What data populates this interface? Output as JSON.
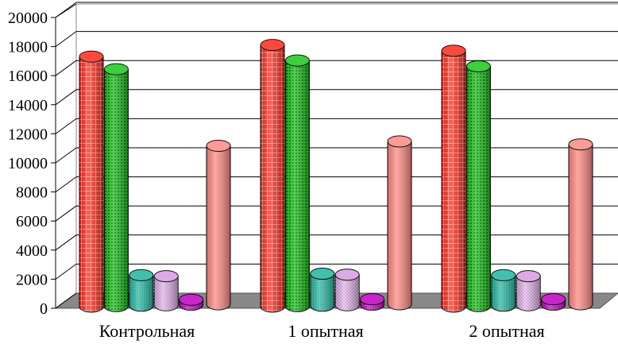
{
  "chart_data": {
    "type": "bar",
    "style": "3d-cylinder",
    "title": "",
    "xlabel": "",
    "ylabel": "",
    "categories": [
      "Контрольная",
      "1 опытная",
      "2 опытная"
    ],
    "ylim": [
      0,
      20000
    ],
    "yticks": [
      0,
      2000,
      4000,
      6000,
      8000,
      10000,
      12000,
      14000,
      16000,
      18000,
      20000
    ],
    "grid": true,
    "legend": "none",
    "series": [
      {
        "color": "#ff2a1a",
        "pattern": "grid",
        "values": [
          17200,
          18000,
          17600
        ]
      },
      {
        "color": "#1ac81a",
        "pattern": "dots",
        "values": [
          16300,
          16900,
          16500
        ]
      },
      {
        "color": "#22b5a0",
        "pattern": "fine",
        "values": [
          2100,
          2200,
          2100
        ]
      },
      {
        "color": "#d69ce0",
        "pattern": "check",
        "values": [
          2000,
          2100,
          2000
        ]
      },
      {
        "color": "#c000c0",
        "pattern": "fine",
        "values": [
          350,
          380,
          380
        ]
      },
      {
        "color": "#ff8a84",
        "pattern": "solid",
        "values": [
          10900,
          11200,
          11000
        ]
      }
    ]
  }
}
